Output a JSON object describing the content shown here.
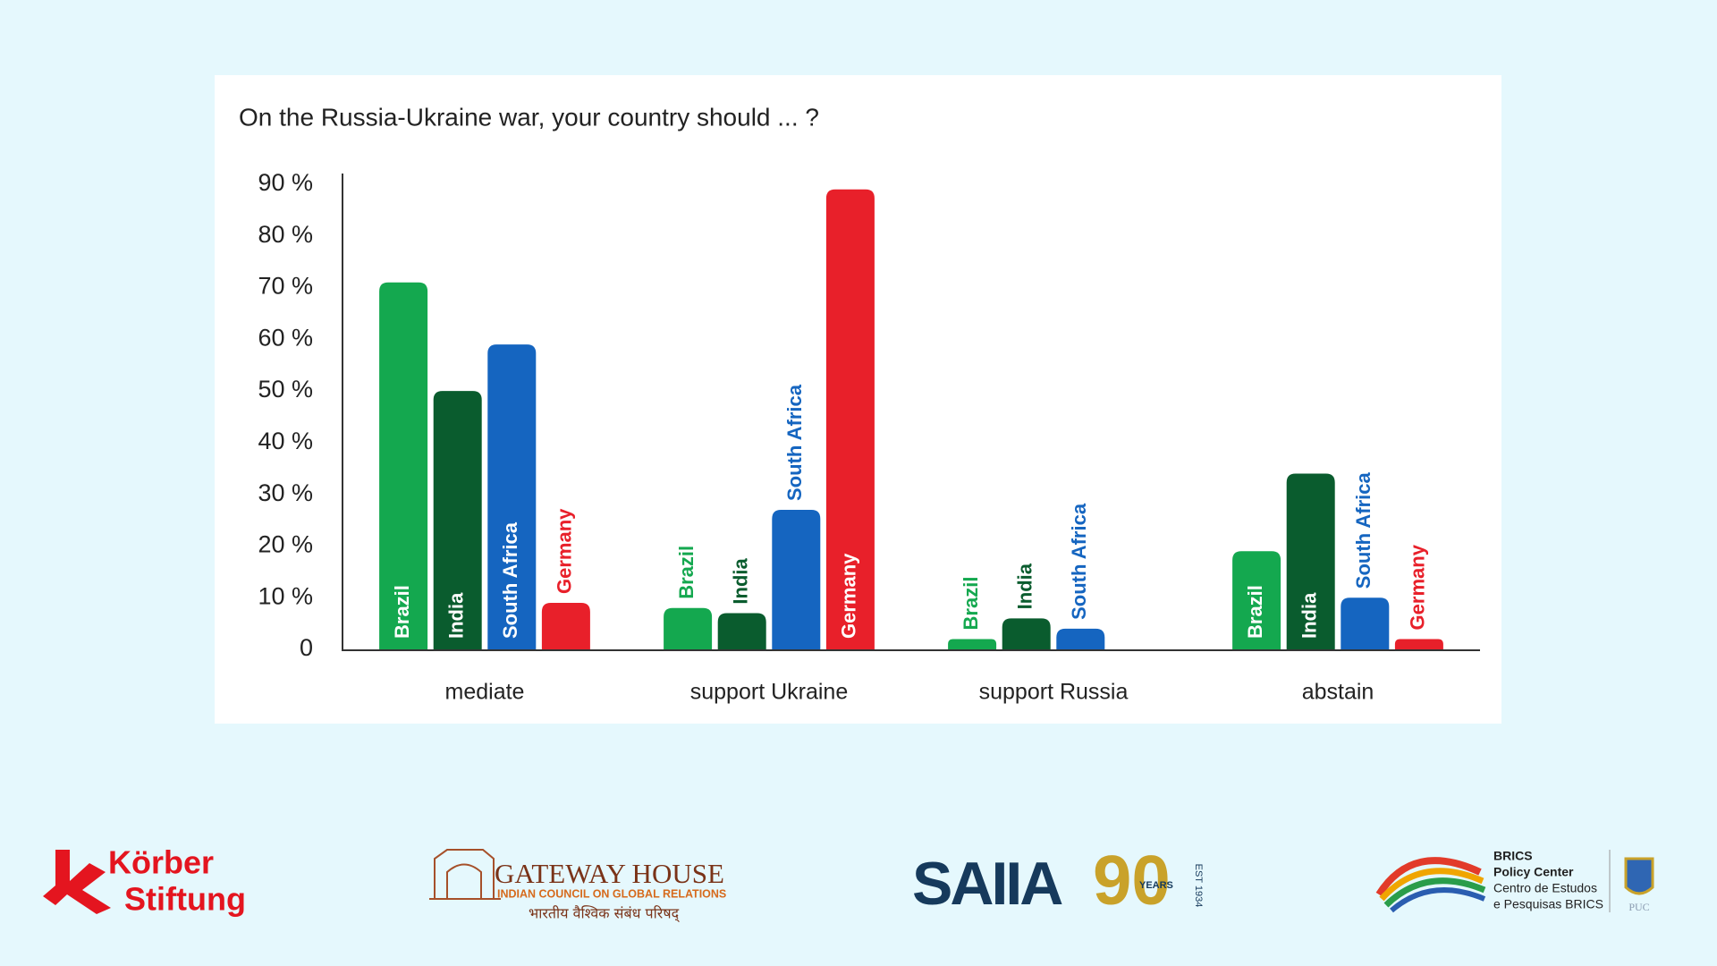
{
  "chart_data": {
    "type": "bar",
    "title": "On the Russia-Ukraine war, your country should ... ?",
    "categories": [
      "mediate",
      "support Ukraine",
      "support Russia",
      "abstain"
    ],
    "series": [
      {
        "name": "Brazil",
        "color": "#14a84f",
        "values": [
          71,
          8,
          2,
          19
        ]
      },
      {
        "name": "India",
        "color": "#0a5c2e",
        "values": [
          50,
          7,
          6,
          34
        ]
      },
      {
        "name": "South Africa",
        "color": "#1565c0",
        "values": [
          59,
          27,
          4,
          10
        ]
      },
      {
        "name": "Germany",
        "color": "#e8202a",
        "values": [
          9,
          89,
          null,
          2
        ]
      }
    ],
    "ylim": [
      0,
      90
    ],
    "yticks": [
      0,
      {
        "value": 10,
        "label": "10 %"
      },
      {
        "value": 20,
        "label": "20 %"
      },
      {
        "value": 30,
        "label": "30 %"
      },
      {
        "value": 40,
        "label": "40 %"
      },
      {
        "value": 50,
        "label": "50 %"
      },
      {
        "value": 60,
        "label": "60 %"
      },
      {
        "value": 70,
        "label": "70 %"
      },
      {
        "value": 80,
        "label": "80 %"
      },
      {
        "value": 90,
        "label": "90 %"
      }
    ]
  },
  "logos": {
    "korber": [
      "Körber",
      "Stiftung"
    ],
    "gateway": {
      "name": "GATEWAY HOUSE",
      "subtitle": "INDIAN COUNCIL ON GLOBAL RELATIONS",
      "hindi": "भारतीय वैश्विक संबंध परिषद्"
    },
    "saiia": {
      "name": "SAIIA",
      "years": "90",
      "years_label": "YEARS",
      "est": "EST 1934"
    },
    "brics": {
      "name": "BRICS",
      "line1": "Policy Center",
      "line2": "Centro de Estudos",
      "line3": "e Pesquisas BRICS",
      "puc": "PUC"
    }
  }
}
